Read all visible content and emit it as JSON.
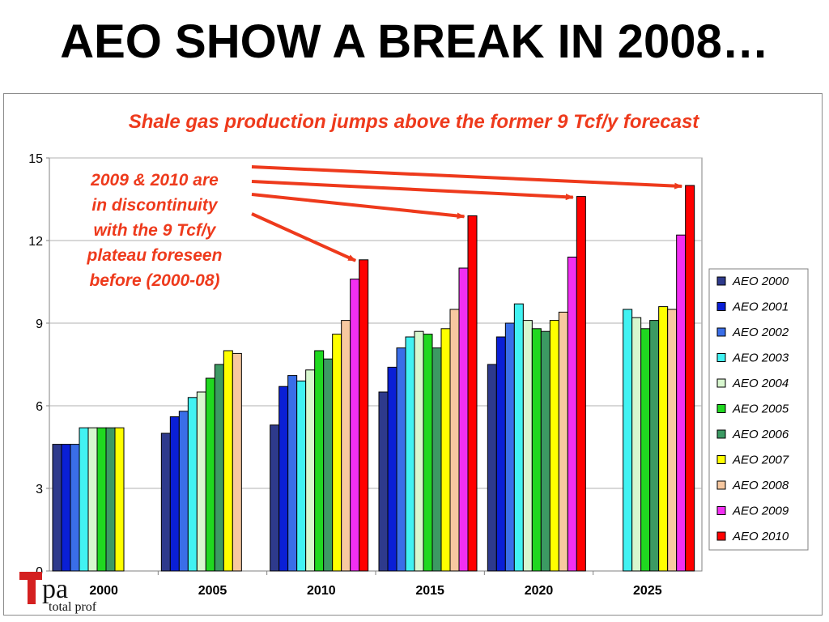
{
  "slide": {
    "title": "AEO SHOW A BREAK IN 2008…"
  },
  "logo": {
    "mark": "pa",
    "caption": "total prof"
  },
  "annotation": {
    "lines": [
      "2009 & 2010 are",
      "in discontinuity",
      "with the 9 Tcf/y",
      "plateau foreseen",
      "before (2000-08)"
    ],
    "color": "#ee3a1c"
  },
  "chart_data": {
    "type": "bar",
    "title": "Shale gas production jumps above the former 9 Tcf/y forecast",
    "title_color": "#ee3a1c",
    "xlabel": "",
    "ylabel": "",
    "ylim": [
      0,
      15
    ],
    "yticks": [
      0,
      3,
      6,
      9,
      12,
      15
    ],
    "grid": true,
    "legend_position": "right",
    "categories": [
      "2000",
      "2005",
      "2010",
      "2015",
      "2020",
      "2025"
    ],
    "series": [
      {
        "name": "AEO 2000",
        "color": "#2e3a8c",
        "values": [
          4.6,
          5.0,
          5.3,
          6.5,
          7.5,
          null
        ]
      },
      {
        "name": "AEO 2001",
        "color": "#0a1fd6",
        "values": [
          4.6,
          5.6,
          6.7,
          7.4,
          8.5,
          null
        ]
      },
      {
        "name": "AEO 2002",
        "color": "#3a6ee8",
        "values": [
          4.6,
          5.8,
          7.1,
          8.1,
          9.0,
          null
        ]
      },
      {
        "name": "AEO 2003",
        "color": "#41f2f2",
        "values": [
          5.2,
          6.3,
          6.9,
          8.5,
          9.7,
          9.5
        ]
      },
      {
        "name": "AEO 2004",
        "color": "#d8f7cf",
        "values": [
          5.2,
          6.5,
          7.3,
          8.7,
          9.1,
          9.2
        ]
      },
      {
        "name": "AEO 2005",
        "color": "#20d820",
        "values": [
          5.2,
          7.0,
          8.0,
          8.6,
          8.8,
          8.8
        ]
      },
      {
        "name": "AEO 2006",
        "color": "#3c9a63",
        "values": [
          5.2,
          7.5,
          7.7,
          8.1,
          8.7,
          9.1
        ]
      },
      {
        "name": "AEO 2007",
        "color": "#ffff00",
        "values": [
          5.2,
          8.0,
          8.6,
          8.8,
          9.1,
          9.6
        ]
      },
      {
        "name": "AEO 2008",
        "color": "#f7c8a0",
        "values": [
          null,
          7.9,
          9.1,
          9.5,
          9.4,
          9.5
        ]
      },
      {
        "name": "AEO 2009",
        "color": "#f22ff2",
        "values": [
          null,
          null,
          10.6,
          11.0,
          11.4,
          12.2
        ]
      },
      {
        "name": "AEO 2010",
        "color": "#ff0000",
        "values": [
          null,
          null,
          11.3,
          12.9,
          13.6,
          14.0
        ]
      }
    ],
    "arrows_to": [
      {
        "category": "2010",
        "value": 11.3
      },
      {
        "category": "2015",
        "value": 12.9
      },
      {
        "category": "2020",
        "value": 13.6
      },
      {
        "category": "2025",
        "value": 14.0
      }
    ]
  }
}
